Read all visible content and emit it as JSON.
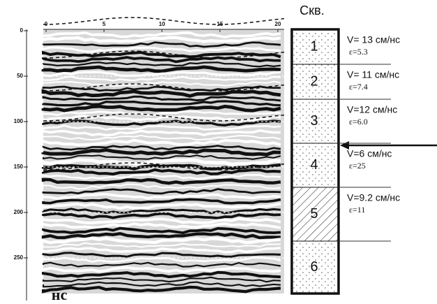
{
  "column_title": "Скв.",
  "y_unit": "нс",
  "x_axis": {
    "ticks": [
      "0",
      "5",
      "10",
      "15",
      "20"
    ]
  },
  "y_axis": {
    "ticks": [
      "0",
      "50",
      "100",
      "150",
      "200",
      "250"
    ]
  },
  "layers": [
    {
      "number": "1",
      "velocity": "V= 13 см/нс",
      "permittivity": "ε=5.3"
    },
    {
      "number": "2",
      "velocity": "V= 11 см/нс",
      "permittivity": "ε=7.4"
    },
    {
      "number": "3",
      "velocity": "V=12 см/нс",
      "permittivity": "ε=6.0"
    },
    {
      "number": "4",
      "velocity": "V=6 см/нс",
      "permittivity": "ε=25"
    },
    {
      "number": "5",
      "velocity": "V=9.2 см/нс",
      "permittivity": "ε=11"
    },
    {
      "number": "6"
    }
  ]
}
